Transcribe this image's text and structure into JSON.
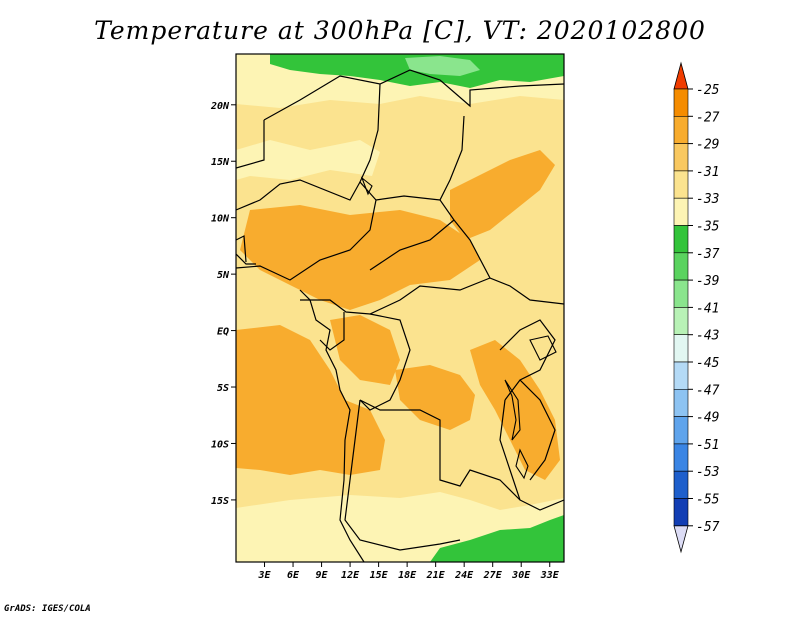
{
  "title": "Temperature at 300hPa [C], VT: 2020102800",
  "credit": "GrADS: IGES/COLA",
  "map": {
    "lon_range": [
      0,
      34.5
    ],
    "lat_range": [
      -20.5,
      24.5
    ],
    "x_ticks": [
      "3E",
      "6E",
      "9E",
      "12E",
      "15E",
      "18E",
      "21E",
      "24E",
      "27E",
      "30E",
      "33E"
    ],
    "x_tick_values": [
      3,
      6,
      9,
      12,
      15,
      18,
      21,
      24,
      27,
      30,
      33
    ],
    "y_ticks": [
      "20N",
      "15N",
      "10N",
      "5N",
      "EQ",
      "5S",
      "10S",
      "15S"
    ],
    "y_tick_values": [
      20,
      15,
      10,
      5,
      0,
      -5,
      -10,
      -15
    ]
  },
  "colorbar": {
    "levels": [
      "-25",
      "-27",
      "-29",
      "-31",
      "-33",
      "-35",
      "-37",
      "-39",
      "-41",
      "-43",
      "-45",
      "-47",
      "-49",
      "-51",
      "-53",
      "-55",
      "-57"
    ],
    "colors": [
      "#f05a00",
      "#f58c00",
      "#f8ac2e",
      "#f9c860",
      "#fbe38f",
      "#fdf4b4",
      "#33c43a",
      "#5ad35f",
      "#8ae58d",
      "#b8f2b6",
      "#e2f7f2",
      "#b4daf6",
      "#8dc3f2",
      "#5fa4ec",
      "#3a85e4",
      "#1e5fcc",
      "#123eb4",
      "#0a1a78"
    ],
    "top_triangle_color": "#f03c00",
    "bottom_triangle_color": "#dcdcf5"
  },
  "colors": {
    "field_base": "#fbe38f",
    "field_warm": "#f8ac2e",
    "field_cool": "#fdf4b4",
    "field_green": "#33c43a",
    "field_light_green": "#8ae58d",
    "border": "#000000"
  }
}
